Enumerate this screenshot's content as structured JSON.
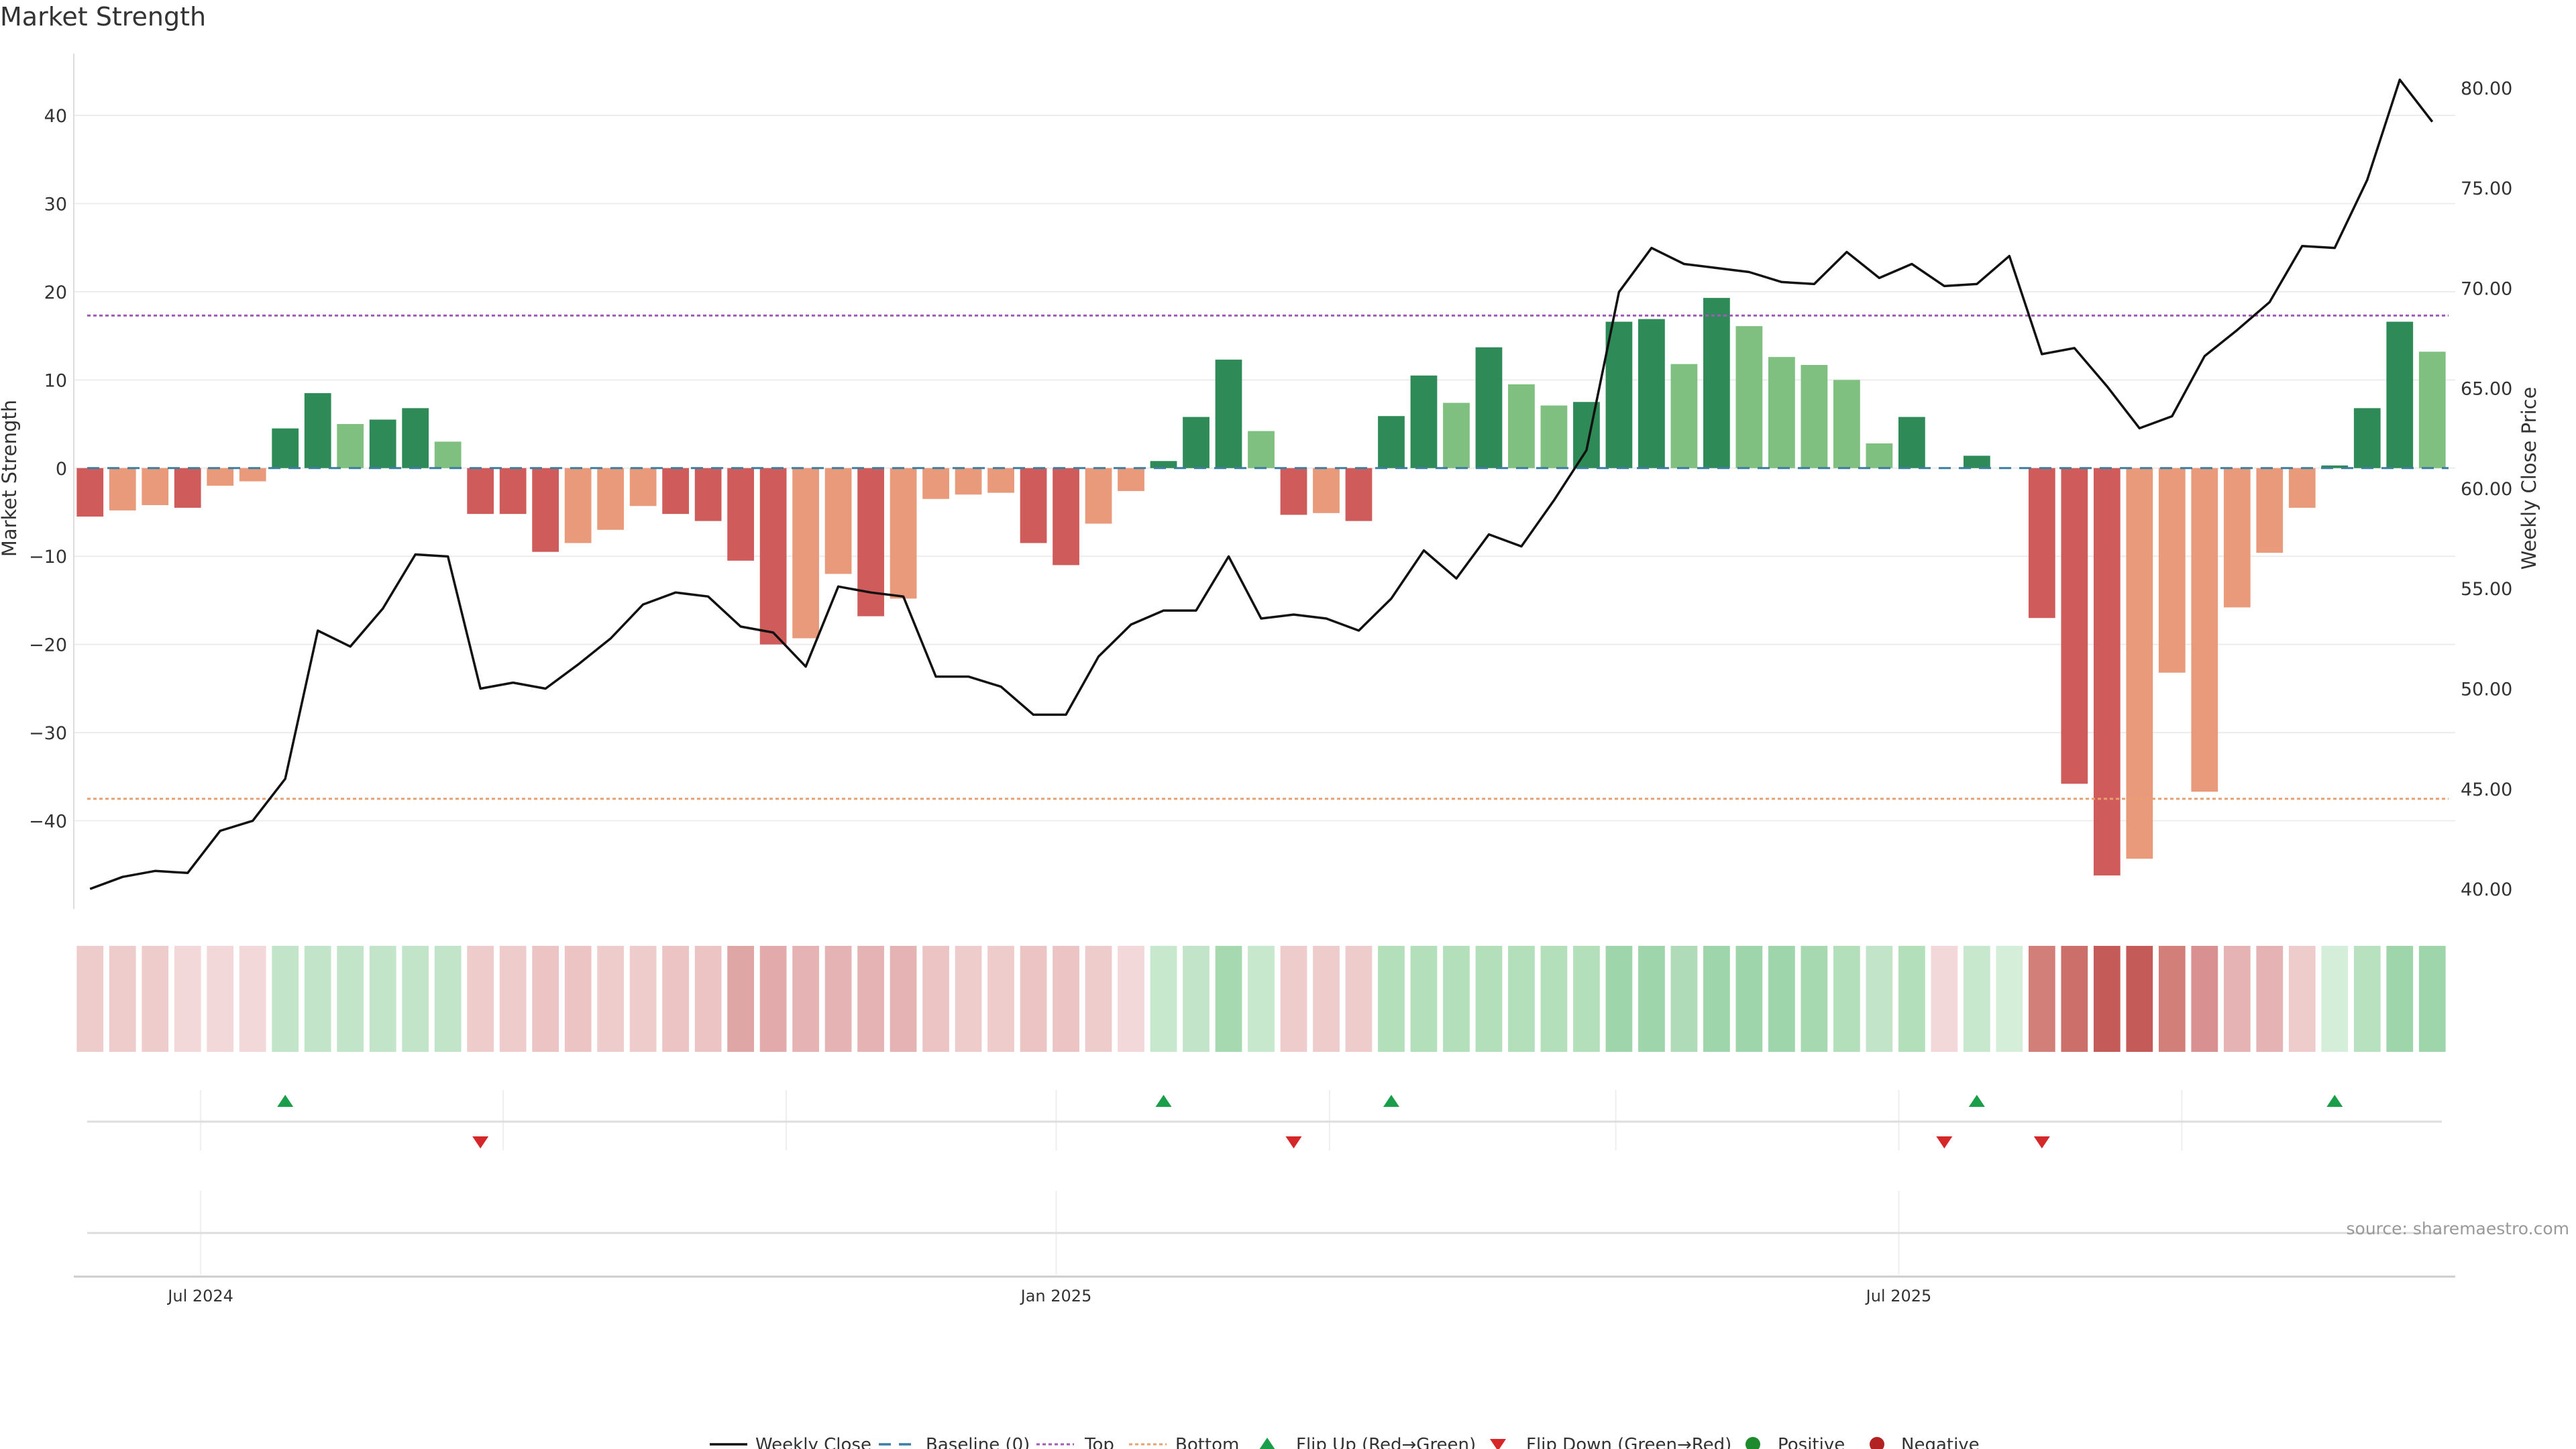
{
  "chart_data": {
    "type": "bar",
    "title": "Market Strength",
    "ylabel_left": "Market Strength",
    "ylabel_right": "Weekly Close Price",
    "source": "source: sharemaestro.com",
    "ylim_left": [
      -50,
      47
    ],
    "yticks_left": [
      -40,
      -30,
      -20,
      -10,
      0,
      10,
      20,
      30,
      40
    ],
    "ytick_labels_left": [
      "−40",
      "−30",
      "−20",
      "−10",
      "0",
      "10",
      "20",
      "30",
      "40"
    ],
    "ylim_right": [
      39.0,
      81.7
    ],
    "yticks_right": [
      40,
      45,
      50,
      55,
      60,
      65,
      70,
      75,
      80
    ],
    "ytick_labels_right": [
      "40.00",
      "45.00",
      "50.00",
      "55.00",
      "60.00",
      "65.00",
      "70.00",
      "75.00",
      "80.00"
    ],
    "top_line": 17.3,
    "bottom_line": -37.5,
    "baseline": 0,
    "x_tick_labels": [
      {
        "label": "Jul 2024",
        "week": 3.4
      },
      {
        "label": "Jan 2025",
        "week": 29.7
      },
      {
        "label": "Jul 2025",
        "week": 55.6
      }
    ],
    "x_extra_gridlines": [
      12.7,
      21.4,
      38.1,
      46.9,
      64.3
    ],
    "strength": [
      -5.5,
      -4.8,
      -4.2,
      -4.5,
      -2,
      -1.5,
      4.5,
      8.5,
      5,
      5.5,
      6.8,
      3,
      -5.2,
      -5.2,
      -9.5,
      -8.5,
      -7,
      -4.3,
      -5.2,
      -6,
      -10.5,
      -20,
      -19.3,
      -12,
      -16.8,
      -14.8,
      -3.5,
      -3,
      -2.8,
      -8.5,
      -11,
      -6.3,
      -2.6,
      0.8,
      5.8,
      12.3,
      4.2,
      -5.3,
      -5.1,
      -6,
      5.9,
      10.5,
      7.4,
      13.7,
      9.5,
      7.1,
      7.5,
      16.6,
      16.9,
      11.8,
      19.3,
      16.1,
      12.6,
      11.7,
      10,
      2.8,
      5.8,
      0,
      1.4,
      0,
      -17,
      -35.8,
      -46.2,
      -44.3,
      -23.2,
      -36.7,
      -15.8,
      -9.6,
      -4.5,
      0.3,
      6.8,
      16.6,
      13.2
    ],
    "bar_colors": [
      "#cf5b5b",
      "#e89a7a",
      "#e89a7a",
      "#cf5b5b",
      "#e89a7a",
      "#e89a7a",
      "#2e8b57",
      "#2e8b57",
      "#7fbf7f",
      "#2e8b57",
      "#2e8b57",
      "#7fbf7f",
      "#cf5b5b",
      "#cf5b5b",
      "#cf5b5b",
      "#e89a7a",
      "#e89a7a",
      "#e89a7a",
      "#cf5b5b",
      "#cf5b5b",
      "#cf5b5b",
      "#cf5b5b",
      "#e89a7a",
      "#e89a7a",
      "#cf5b5b",
      "#e89a7a",
      "#e89a7a",
      "#e89a7a",
      "#e89a7a",
      "#cf5b5b",
      "#cf5b5b",
      "#e89a7a",
      "#e89a7a",
      "#2e8b57",
      "#2e8b57",
      "#2e8b57",
      "#7fbf7f",
      "#cf5b5b",
      "#e89a7a",
      "#cf5b5b",
      "#2e8b57",
      "#2e8b57",
      "#7fbf7f",
      "#2e8b57",
      "#7fbf7f",
      "#7fbf7f",
      "#2e8b57",
      "#2e8b57",
      "#2e8b57",
      "#7fbf7f",
      "#2e8b57",
      "#7fbf7f",
      "#7fbf7f",
      "#7fbf7f",
      "#7fbf7f",
      "#7fbf7f",
      "#2e8b57",
      "#2e8b57",
      "#2e8b57",
      "#2e8b57",
      "#cf5b5b",
      "#cf5b5b",
      "#cf5b5b",
      "#e89a7a",
      "#e89a7a",
      "#e89a7a",
      "#e89a7a",
      "#e89a7a",
      "#e89a7a",
      "#2e8b57",
      "#2e8b57",
      "#2e8b57",
      "#7fbf7f"
    ],
    "heat_colors": [
      "#efcccc",
      "#efcccc",
      "#efcccc",
      "#f2d8d8",
      "#f2d8d8",
      "#f2d8d8",
      "#c2e5c9",
      "#c2e5c9",
      "#c2e5c9",
      "#c2e5c9",
      "#c2e5c9",
      "#c2e5c9",
      "#efcccc",
      "#efcccc",
      "#ecc4c4",
      "#ecc4c4",
      "#efcccc",
      "#efcccc",
      "#ecc4c4",
      "#ecc4c4",
      "#dfa6a6",
      "#e2aaaa",
      "#e5b3b3",
      "#e5b3b3",
      "#e5b3b3",
      "#e5b3b3",
      "#ecc4c4",
      "#efcccc",
      "#efcccc",
      "#ecc4c4",
      "#ecc4c4",
      "#efcccc",
      "#f2d8d8",
      "#c8e8cd",
      "#c2e5c9",
      "#a7d9b0",
      "#c8e8cd",
      "#efcccc",
      "#efcccc",
      "#efcccc",
      "#b3dfbb",
      "#b3dfbb",
      "#b3dfbb",
      "#b3dfbb",
      "#b3dfbb",
      "#b3dfbb",
      "#b3dfbb",
      "#9fd5aa",
      "#9fd5aa",
      "#b0dbb8",
      "#9fd5aa",
      "#9fd5aa",
      "#9fd5aa",
      "#a7d9b0",
      "#b3dfbb",
      "#c2e5c9",
      "#b3dfbb",
      "#f2d8d8",
      "#c8e8cd",
      "#d5eed9",
      "#d27f7a",
      "#cc6e6a",
      "#c55b58",
      "#c55b58",
      "#d27f7a",
      "#d89090",
      "#e5b3b3",
      "#e5b3b3",
      "#efcccc",
      "#d5eed9",
      "#b8e1bf",
      "#9fd5aa",
      "#9fd5aa"
    ],
    "weekly_close": [
      40.0,
      40.6,
      40.9,
      40.8,
      42.9,
      43.4,
      45.5,
      52.9,
      52.1,
      54.0,
      56.7,
      56.6,
      50.0,
      50.3,
      50.0,
      51.2,
      52.5,
      54.2,
      54.8,
      54.6,
      53.1,
      52.8,
      51.1,
      55.1,
      54.8,
      54.6,
      50.6,
      50.6,
      50.1,
      48.7,
      48.7,
      51.6,
      53.2,
      53.9,
      53.9,
      56.6,
      53.5,
      53.7,
      53.5,
      52.9,
      54.5,
      56.9,
      55.5,
      57.7,
      57.1,
      59.4,
      61.9,
      69.8,
      72.0,
      71.2,
      71.0,
      70.8,
      70.3,
      70.2,
      71.8,
      70.5,
      71.2,
      70.1,
      70.2,
      71.6,
      66.7,
      67.0,
      65.1,
      63.0,
      63.6,
      66.6,
      67.9,
      69.3,
      72.1,
      72.0,
      75.4,
      80.4,
      78.3
    ],
    "flip_up_weeks": [
      6,
      33,
      40,
      58,
      69
    ],
    "flip_down_weeks": [
      12,
      37,
      57,
      60
    ],
    "legend": {
      "weekly_close": "Weekly Close",
      "baseline": "Baseline (0)",
      "top": "Top",
      "bottom": "Bottom",
      "flip_up": "Flip Up (Red→Green)",
      "flip_down": "Flip Down (Green→Red)",
      "positive": "Positive",
      "negative": "Negative"
    },
    "colors": {
      "green_strong": "#2e8b57",
      "green_light": "#7fbf7f",
      "red_strong": "#cf5b5b",
      "red_light": "#e89a7a",
      "line": "#111111",
      "baseline": "#3b7ea1",
      "top": "#a05ab8",
      "bottom": "#e8a070",
      "flip_up": "#1a9e4a",
      "flip_down": "#d62728",
      "positive": "#1e8a2e",
      "negative": "#b22222"
    }
  }
}
